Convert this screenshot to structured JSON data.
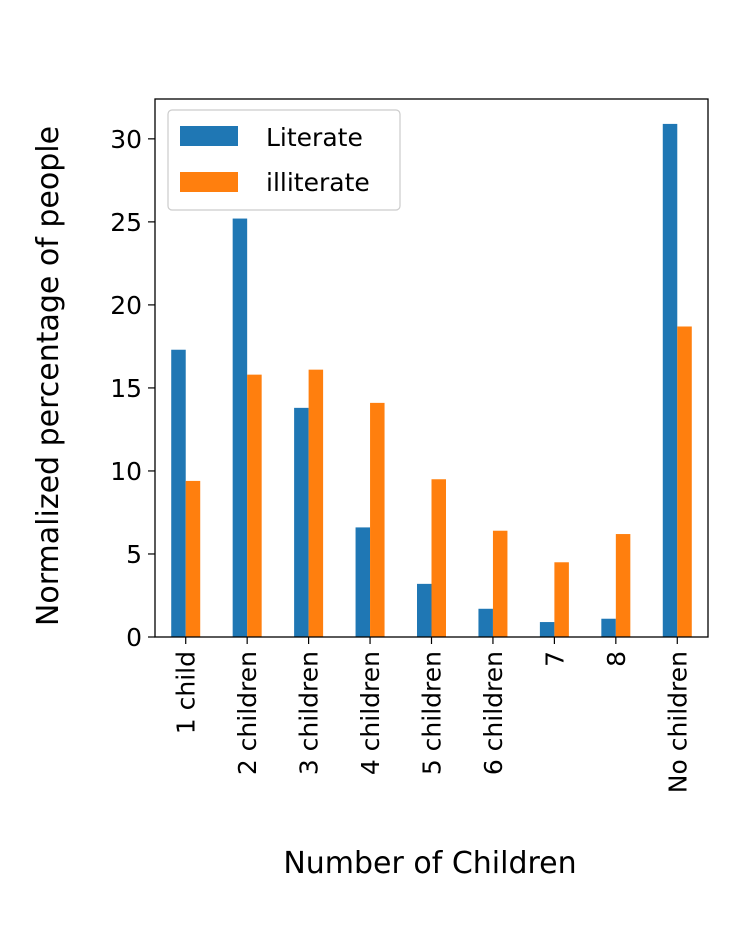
{
  "chart_data": {
    "type": "bar",
    "xlabel": "Number of Children",
    "ylabel": "Normalized percentage of people",
    "categories": [
      "1 child",
      "2 children",
      "3 children",
      "4 children",
      "5 children",
      "6 children",
      "7",
      "8",
      "No children"
    ],
    "series": [
      {
        "name": "Literate",
        "color": "#1f77b4",
        "values": [
          17.3,
          25.2,
          13.8,
          6.6,
          3.2,
          1.7,
          0.9,
          1.1,
          30.9
        ]
      },
      {
        "name": "illiterate",
        "color": "#ff7f0e",
        "values": [
          9.4,
          15.8,
          16.1,
          14.1,
          9.5,
          6.4,
          4.5,
          6.2,
          18.7
        ]
      }
    ],
    "ylim": [
      0,
      32.4
    ],
    "yticks": [
      "0",
      "5",
      "10",
      "15",
      "20",
      "25",
      "30"
    ],
    "grid": false,
    "legend_position": "top-left"
  }
}
